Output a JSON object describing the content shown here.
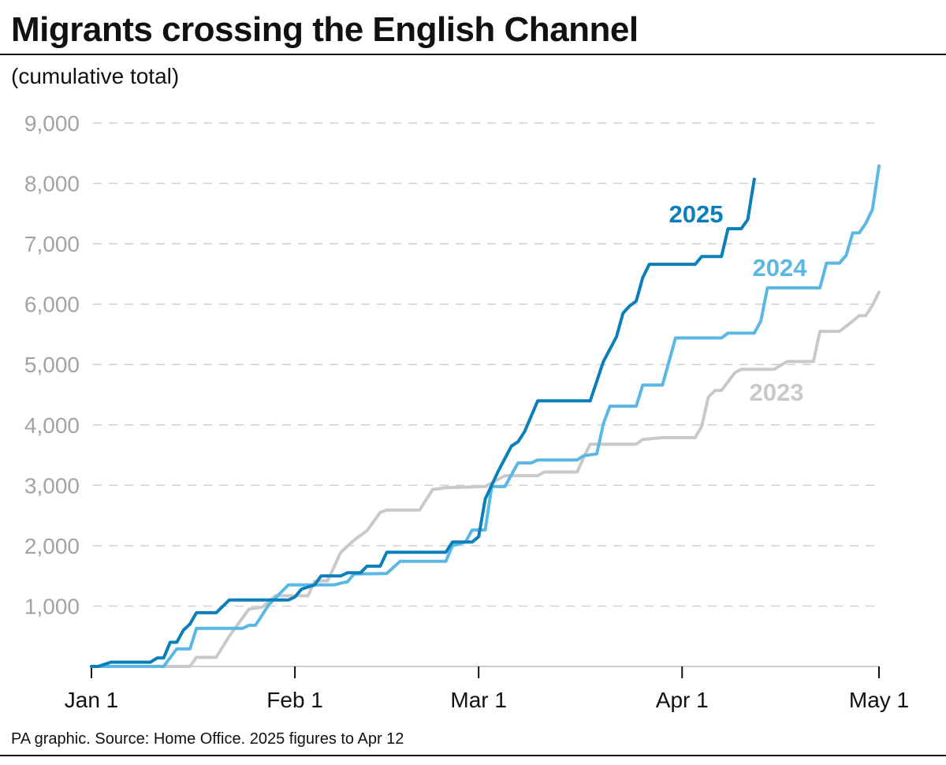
{
  "chart_data": {
    "type": "line",
    "title": "Migrants crossing the English Channel",
    "subtitle": "(cumulative total)",
    "xlabel": "",
    "ylabel": "",
    "ylim": [
      0,
      9000
    ],
    "yticks": [
      1000,
      2000,
      3000,
      4000,
      5000,
      6000,
      7000,
      8000,
      9000
    ],
    "ytick_labels": [
      "1,000",
      "2,000",
      "3,000",
      "4,000",
      "5,000",
      "6,000",
      "7,000",
      "8,000",
      "9,000"
    ],
    "xlim": [
      "Jan 1",
      "May 1"
    ],
    "xticks": [
      "Jan 1",
      "Feb 1",
      "Mar 1",
      "Apr 1",
      "May 1"
    ],
    "grid": "horizontal dashed",
    "legend": "inline labels at line ends",
    "source": "PA graphic. Source: Home Office. 2025 figures to Apr 12",
    "series": [
      {
        "name": "2023",
        "color": "#c9c9c9",
        "points": [
          [
            "Jan 1",
            0
          ],
          [
            "Jan 16",
            0
          ],
          [
            "Jan 17",
            150
          ],
          [
            "Jan 20",
            150
          ],
          [
            "Jan 22",
            500
          ],
          [
            "Jan 25",
            950
          ],
          [
            "Jan 27",
            980
          ],
          [
            "Jan 29",
            1170
          ],
          [
            "Feb 3",
            1170
          ],
          [
            "Feb 4",
            1410
          ],
          [
            "Feb 6",
            1420
          ],
          [
            "Feb 8",
            1890
          ],
          [
            "Feb 10",
            2090
          ],
          [
            "Feb 12",
            2250
          ],
          [
            "Feb 14",
            2550
          ],
          [
            "Feb 15",
            2590
          ],
          [
            "Feb 20",
            2590
          ],
          [
            "Feb 22",
            2930
          ],
          [
            "Feb 24",
            2960
          ],
          [
            "Mar 2",
            2980
          ],
          [
            "Mar 5",
            3160
          ],
          [
            "Mar 10",
            3160
          ],
          [
            "Mar 11",
            3220
          ],
          [
            "Mar 16",
            3220
          ],
          [
            "Mar 17",
            3460
          ],
          [
            "Mar 18",
            3680
          ],
          [
            "Mar 25",
            3680
          ],
          [
            "Mar 26",
            3760
          ],
          [
            "Mar 29",
            3790
          ],
          [
            "Apr 3",
            3790
          ],
          [
            "Apr 4",
            3980
          ],
          [
            "Apr 5",
            4460
          ],
          [
            "Apr 6",
            4570
          ],
          [
            "Apr 7",
            4570
          ],
          [
            "Apr 9",
            4860
          ],
          [
            "Apr 10",
            4920
          ],
          [
            "Apr 15",
            4920
          ],
          [
            "Apr 17",
            5050
          ],
          [
            "Apr 21",
            5050
          ],
          [
            "Apr 22",
            5550
          ],
          [
            "Apr 25",
            5550
          ],
          [
            "Apr 27",
            5720
          ],
          [
            "Apr 28",
            5810
          ],
          [
            "Apr 29",
            5810
          ],
          [
            "Apr 30",
            5980
          ],
          [
            "May 1",
            6200
          ]
        ]
      },
      {
        "name": "2024",
        "color": "#5bb8e2",
        "points": [
          [
            "Jan 1",
            0
          ],
          [
            "Jan 12",
            0
          ],
          [
            "Jan 14",
            290
          ],
          [
            "Jan 16",
            290
          ],
          [
            "Jan 17",
            630
          ],
          [
            "Jan 24",
            630
          ],
          [
            "Jan 25",
            680
          ],
          [
            "Jan 26",
            680
          ],
          [
            "Jan 28",
            1020
          ],
          [
            "Jan 31",
            1350
          ],
          [
            "Feb 7",
            1350
          ],
          [
            "Feb 8",
            1380
          ],
          [
            "Feb 9",
            1400
          ],
          [
            "Feb 10",
            1530
          ],
          [
            "Feb 15",
            1540
          ],
          [
            "Feb 17",
            1740
          ],
          [
            "Feb 24",
            1740
          ],
          [
            "Feb 25",
            2000
          ],
          [
            "Feb 27",
            2060
          ],
          [
            "Feb 28",
            2260
          ],
          [
            "Mar 2",
            2260
          ],
          [
            "Mar 3",
            2980
          ],
          [
            "Mar 5",
            2980
          ],
          [
            "Mar 7",
            3370
          ],
          [
            "Mar 9",
            3370
          ],
          [
            "Mar 10",
            3420
          ],
          [
            "Mar 16",
            3420
          ],
          [
            "Mar 17",
            3490
          ],
          [
            "Mar 19",
            3520
          ],
          [
            "Mar 20",
            4020
          ],
          [
            "Mar 21",
            4310
          ],
          [
            "Mar 25",
            4310
          ],
          [
            "Mar 26",
            4660
          ],
          [
            "Mar 29",
            4660
          ],
          [
            "Mar 31",
            5440
          ],
          [
            "Apr 7",
            5440
          ],
          [
            "Apr 8",
            5520
          ],
          [
            "Apr 12",
            5520
          ],
          [
            "Apr 13",
            5720
          ],
          [
            "Apr 14",
            6270
          ],
          [
            "Apr 22",
            6270
          ],
          [
            "Apr 23",
            6680
          ],
          [
            "Apr 25",
            6680
          ],
          [
            "Apr 26",
            6810
          ],
          [
            "Apr 27",
            7180
          ],
          [
            "Apr 28",
            7180
          ],
          [
            "Apr 29",
            7340
          ],
          [
            "Apr 30",
            7570
          ],
          [
            "May 1",
            8290
          ]
        ]
      },
      {
        "name": "2025",
        "color": "#0b7fba",
        "points": [
          [
            "Jan 1",
            0
          ],
          [
            "Jan 2",
            0
          ],
          [
            "Jan 4",
            70
          ],
          [
            "Jan 10",
            70
          ],
          [
            "Jan 11",
            140
          ],
          [
            "Jan 12",
            140
          ],
          [
            "Jan 13",
            400
          ],
          [
            "Jan 14",
            400
          ],
          [
            "Jan 15",
            600
          ],
          [
            "Jan 16",
            700
          ],
          [
            "Jan 17",
            890
          ],
          [
            "Jan 20",
            890
          ],
          [
            "Jan 22",
            1100
          ],
          [
            "Jan 31",
            1100
          ],
          [
            "Feb 1",
            1150
          ],
          [
            "Feb 2",
            1280
          ],
          [
            "Feb 4",
            1350
          ],
          [
            "Feb 5",
            1500
          ],
          [
            "Feb 8",
            1500
          ],
          [
            "Feb 9",
            1550
          ],
          [
            "Feb 11",
            1550
          ],
          [
            "Feb 12",
            1660
          ],
          [
            "Feb 14",
            1660
          ],
          [
            "Feb 15",
            1890
          ],
          [
            "Feb 24",
            1890
          ],
          [
            "Feb 25",
            2060
          ],
          [
            "Feb 28",
            2060
          ],
          [
            "Mar 1",
            2150
          ],
          [
            "Mar 2",
            2770
          ],
          [
            "Mar 4",
            3240
          ],
          [
            "Mar 6",
            3650
          ],
          [
            "Mar 7",
            3720
          ],
          [
            "Mar 8",
            3890
          ],
          [
            "Mar 10",
            4400
          ],
          [
            "Mar 18",
            4400
          ],
          [
            "Mar 20",
            5050
          ],
          [
            "Mar 22",
            5460
          ],
          [
            "Mar 23",
            5850
          ],
          [
            "Mar 24",
            5970
          ],
          [
            "Mar 25",
            6050
          ],
          [
            "Mar 26",
            6440
          ],
          [
            "Mar 27",
            6660
          ],
          [
            "Apr 3",
            6660
          ],
          [
            "Apr 4",
            6790
          ],
          [
            "Apr 7",
            6790
          ],
          [
            "Apr 8",
            7250
          ],
          [
            "Apr 10",
            7250
          ],
          [
            "Apr 11",
            7400
          ],
          [
            "Apr 12",
            8070
          ]
        ]
      }
    ]
  }
}
